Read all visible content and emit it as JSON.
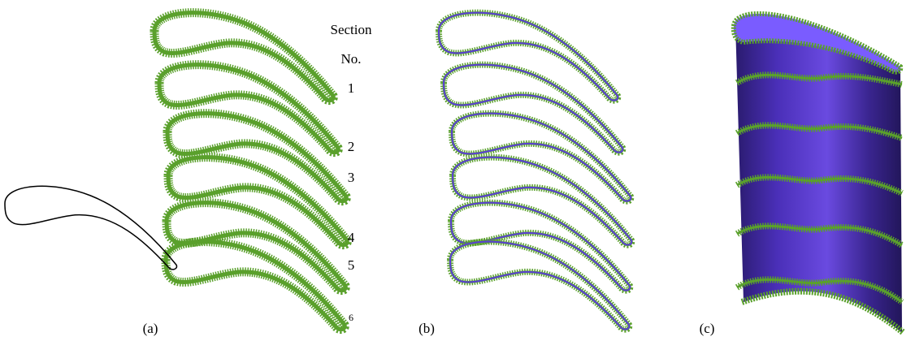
{
  "section_header": {
    "line1": "Section",
    "line2": "No."
  },
  "section_numbers": [
    "1",
    "2",
    "3",
    "4",
    "5",
    "6"
  ],
  "panel_labels": [
    "(a)",
    "(b)",
    "(c)"
  ]
}
